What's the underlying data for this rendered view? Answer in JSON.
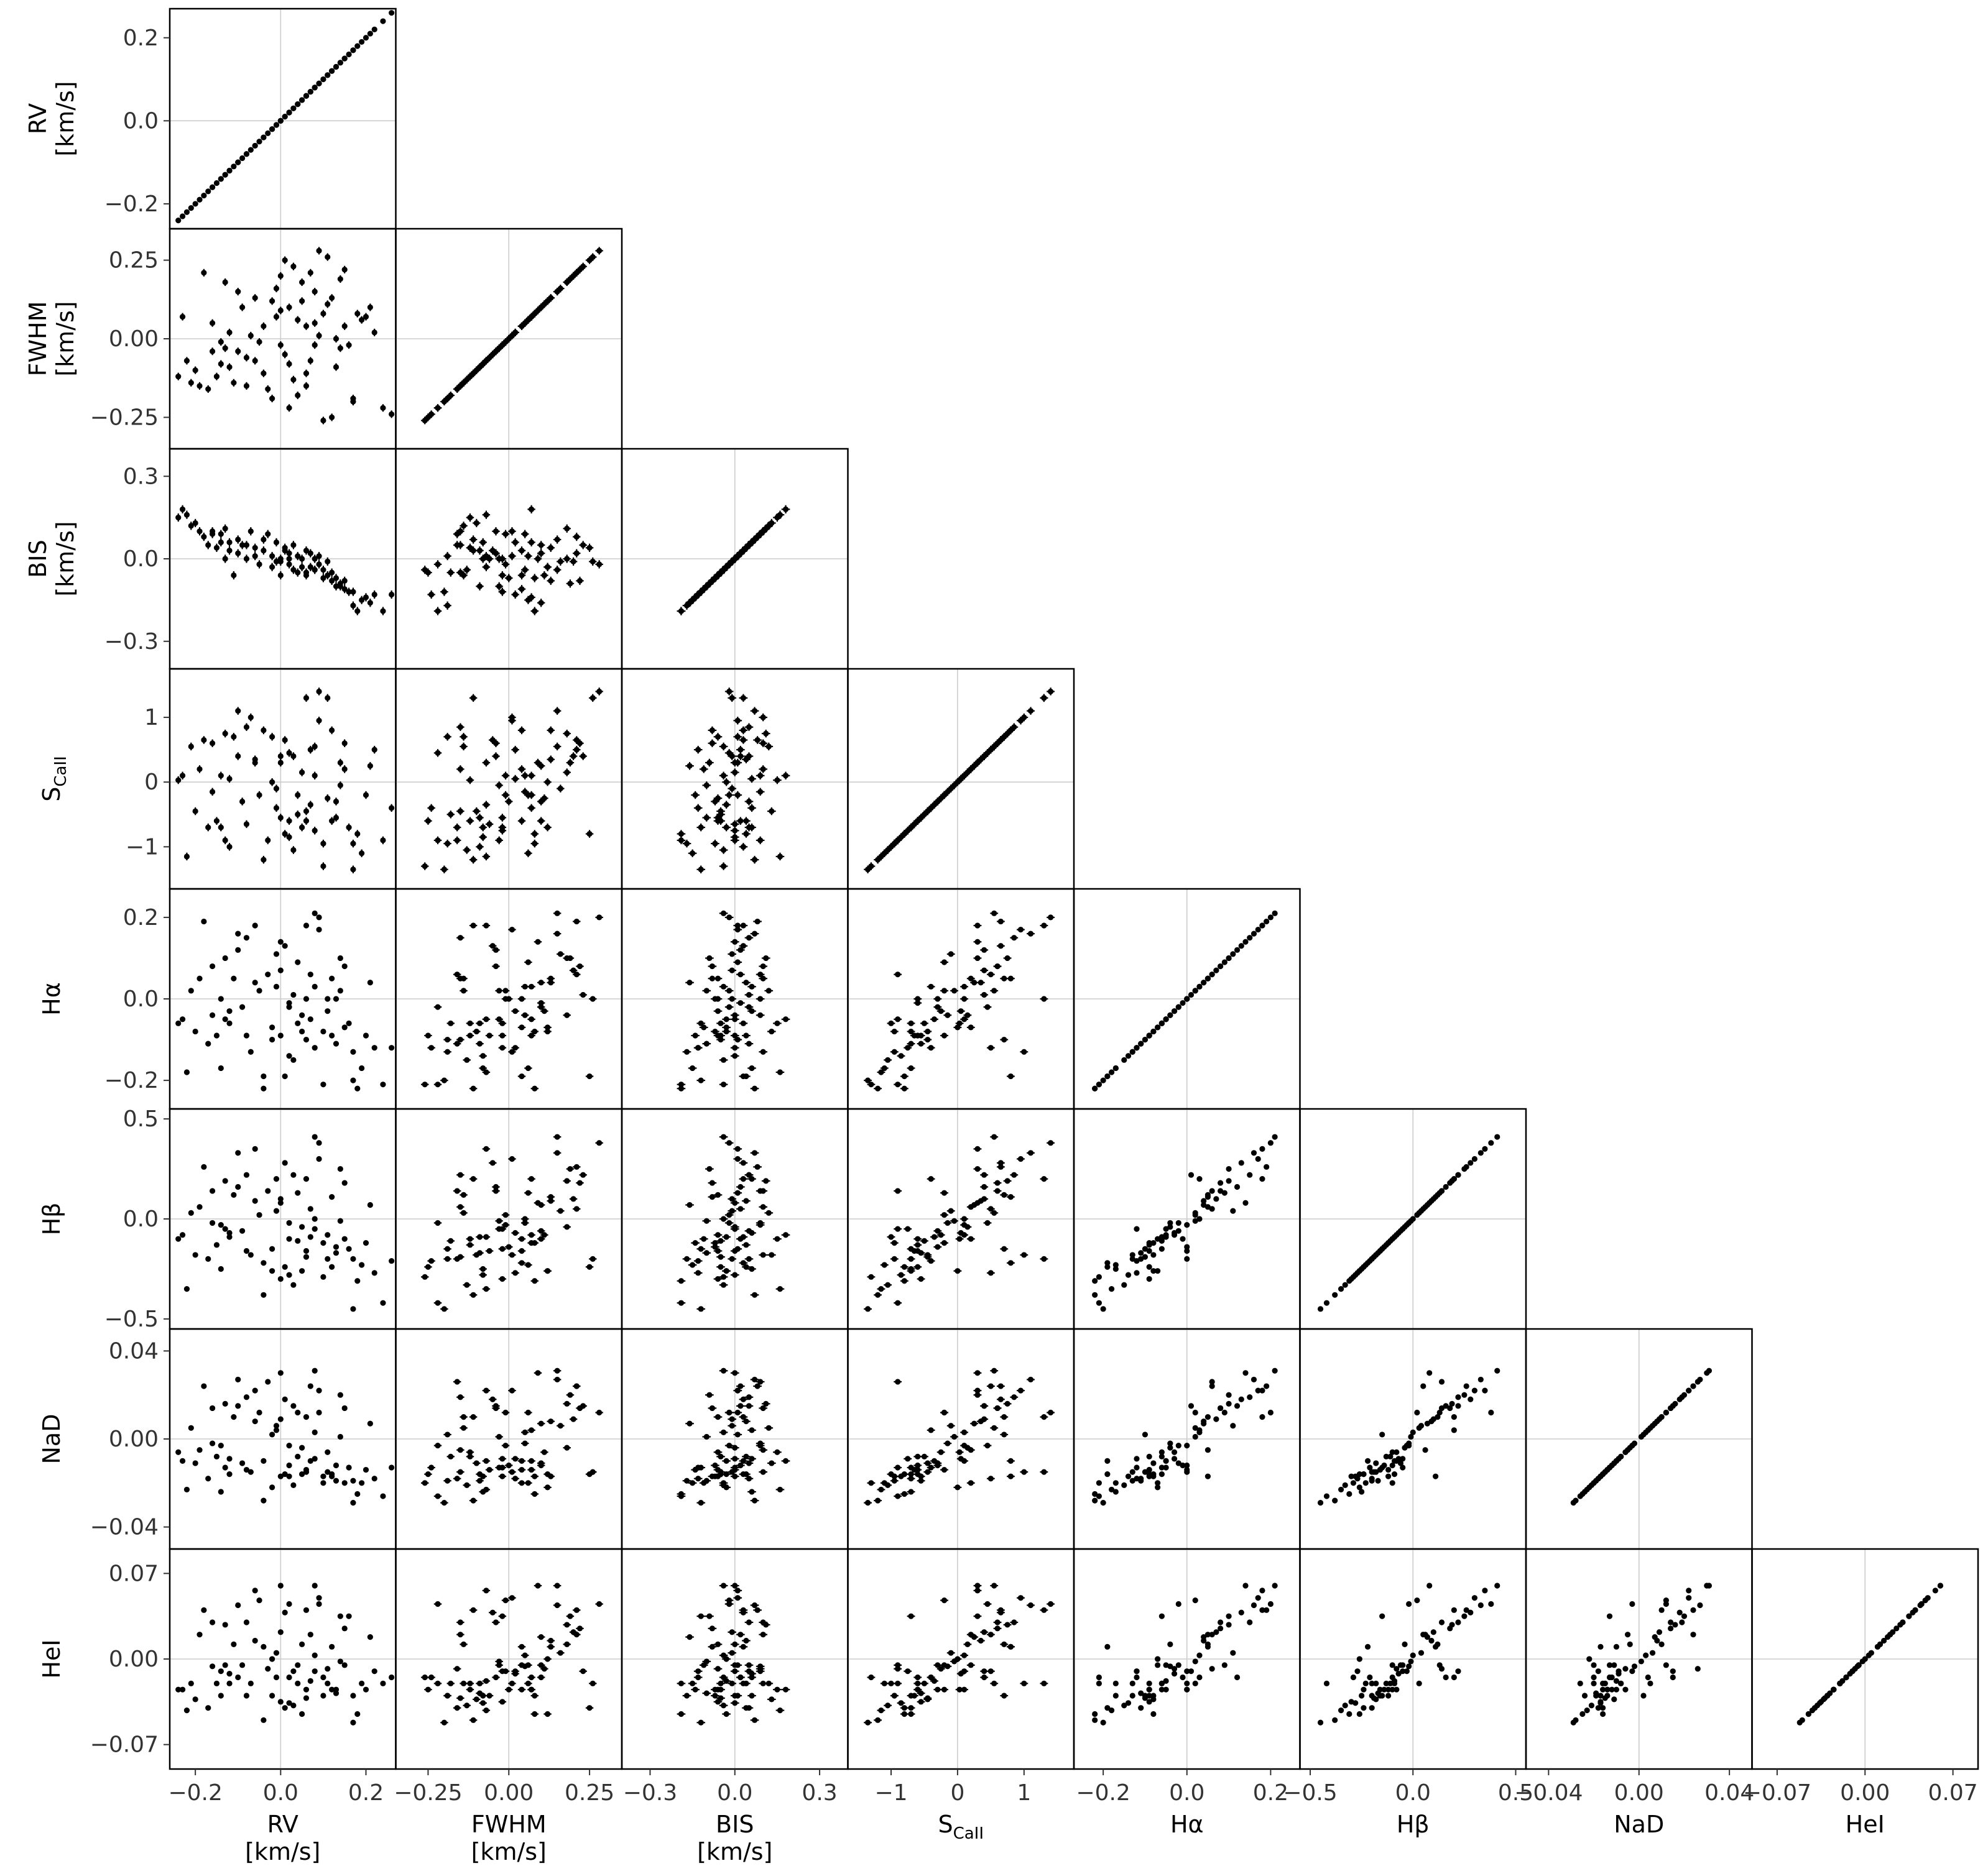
{
  "variables": [
    {
      "key": "RV",
      "label": "RV",
      "sub": "",
      "unit": "[km/s]",
      "ticks": [
        -0.2,
        0.0,
        0.2
      ],
      "tick_labels": [
        "−0.2",
        "0.0",
        "0.2"
      ],
      "range": [
        -0.26,
        0.27
      ]
    },
    {
      "key": "FWHM",
      "label": "FWHM",
      "sub": "",
      "unit": "[km/s]",
      "ticks": [
        -0.25,
        0.0,
        0.25
      ],
      "tick_labels": [
        "−0.25",
        "0.00",
        "0.25"
      ],
      "range": [
        -0.35,
        0.35
      ]
    },
    {
      "key": "BIS",
      "label": "BIS",
      "sub": "",
      "unit": "[km/s]",
      "ticks": [
        -0.3,
        0.0,
        0.3
      ],
      "tick_labels": [
        "−0.3",
        "0.0",
        "0.3"
      ],
      "range": [
        -0.4,
        0.4
      ]
    },
    {
      "key": "SCaII",
      "label": "S",
      "sub": "CaII",
      "unit": "",
      "ticks": [
        -1,
        0,
        1
      ],
      "tick_labels": [
        "−1",
        "0",
        "1"
      ],
      "range": [
        -1.65,
        1.75
      ]
    },
    {
      "key": "Ha",
      "label": "Hα",
      "sub": "",
      "unit": "",
      "ticks": [
        -0.2,
        0.0,
        0.2
      ],
      "tick_labels": [
        "−0.2",
        "0.0",
        "0.2"
      ],
      "range": [
        -0.27,
        0.27
      ]
    },
    {
      "key": "Hb",
      "label": "Hβ",
      "sub": "",
      "unit": "",
      "ticks": [
        -0.5,
        0.0,
        0.5
      ],
      "tick_labels": [
        "−0.5",
        "0.0",
        "0.5"
      ],
      "range": [
        -0.55,
        0.55
      ]
    },
    {
      "key": "NaD",
      "label": "NaD",
      "sub": "",
      "unit": "",
      "ticks": [
        -0.04,
        0.0,
        0.04
      ],
      "tick_labels": [
        "−0.04",
        "0.00",
        "0.04"
      ],
      "range": [
        -0.05,
        0.05
      ]
    },
    {
      "key": "HeI",
      "label": "HeI",
      "sub": "",
      "unit": "",
      "ticks": [
        -0.07,
        0.0,
        0.07
      ],
      "tick_labels": [
        "−0.07",
        "0.00",
        "0.07"
      ],
      "range": [
        -0.09,
        0.09
      ]
    }
  ],
  "chart_data": {
    "type": "scatter",
    "layout": "corner-pairplot",
    "grid": true,
    "n_points": 80,
    "error_bars": {
      "RV": 0.006,
      "FWHM": 0.012,
      "BIS": 0.015,
      "SCaII": 0.06,
      "Ha": 0.004,
      "Hb": 0.006,
      "NaD": 0.0006,
      "HeI": 0.001
    },
    "points": [
      [
        -0.24,
        -0.12,
        0.15,
        0.03,
        -0.06,
        -0.1,
        -0.006,
        -0.025
      ],
      [
        -0.23,
        0.07,
        0.18,
        0.1,
        -0.05,
        -0.08,
        -0.01,
        -0.025
      ],
      [
        -0.21,
        -0.14,
        0.12,
        0.55,
        0.02,
        0.03,
        0.005,
        -0.02
      ],
      [
        -0.19,
        -0.15,
        0.1,
        0.2,
        0.05,
        0.06,
        -0.005,
        0.02
      ],
      [
        -0.18,
        0.21,
        0.08,
        0.65,
        0.19,
        0.26,
        0.024,
        0.04
      ],
      [
        -0.17,
        -0.16,
        0.05,
        -0.7,
        -0.11,
        -0.2,
        -0.018,
        -0.04
      ],
      [
        -0.16,
        -0.04,
        0.1,
        0.6,
        0.08,
        0.14,
        0.014,
        0.03
      ],
      [
        -0.15,
        -0.12,
        0.04,
        -0.6,
        -0.09,
        -0.13,
        -0.008,
        -0.02
      ],
      [
        -0.14,
        -0.01,
        0.09,
        0.1,
        0.0,
        -0.03,
        -0.003,
        -0.01
      ],
      [
        -0.14,
        -0.08,
        0.06,
        -0.7,
        -0.17,
        -0.25,
        -0.024,
        -0.03
      ],
      [
        -0.13,
        -0.03,
        0.0,
        -0.9,
        -0.05,
        -0.05,
        -0.013,
        -0.005
      ],
      [
        -0.12,
        -0.09,
        0.03,
        -1.0,
        -0.06,
        -0.09,
        -0.016,
        -0.02
      ],
      [
        -0.11,
        -0.14,
        -0.06,
        0.7,
        0.05,
        0.12,
        0.01,
        0.012
      ],
      [
        -0.1,
        -0.04,
        0.02,
        0.4,
        0.12,
        0.16,
        0.015,
        -0.015
      ],
      [
        -0.09,
        0.1,
        0.05,
        -0.3,
        -0.02,
        -0.06,
        -0.011,
        -0.005
      ],
      [
        -0.08,
        -0.06,
        0.0,
        -0.65,
        -0.09,
        -0.16,
        -0.014,
        -0.03
      ],
      [
        -0.07,
        0.01,
        0.1,
        1.0,
        -0.13,
        -0.18,
        -0.015,
        -0.02
      ],
      [
        -0.06,
        -0.07,
        0.01,
        0.3,
        0.18,
        0.35,
        0.022,
        0.056
      ],
      [
        -0.05,
        -0.01,
        -0.02,
        -0.2,
        0.02,
        0.02,
        0.012,
        0.048
      ],
      [
        -0.04,
        0.04,
        0.03,
        0.8,
        -0.19,
        -0.22,
        -0.01,
        0.01
      ],
      [
        -0.03,
        -0.16,
        0.09,
        -0.9,
        0.06,
        0.14,
        0.026,
        -0.008
      ],
      [
        -0.02,
        0.12,
        -0.03,
        0.0,
        -0.07,
        -0.26,
        -0.022,
        0.0
      ],
      [
        -0.02,
        -0.19,
        0.01,
        0.7,
        -0.1,
        -0.15,
        0.002,
        -0.03
      ],
      [
        -0.01,
        0.07,
        0.06,
        -0.4,
        0.03,
        0.2,
        0.004,
        -0.015
      ],
      [
        0.0,
        -0.02,
        -0.06,
        -0.55,
        -0.09,
        -0.3,
        -0.017,
        -0.035
      ],
      [
        0.0,
        0.09,
        0.0,
        0.3,
        0.14,
        0.08,
        0.03,
        0.06
      ],
      [
        0.01,
        0.25,
        0.04,
        -0.8,
        -0.19,
        -0.24,
        -0.016,
        -0.04
      ],
      [
        0.02,
        -0.22,
        -0.02,
        0.45,
        -0.02,
        -0.02,
        -0.003,
        0.045
      ],
      [
        0.02,
        0.1,
        0.02,
        -0.6,
        -0.01,
        -0.1,
        -0.012,
        -0.015
      ],
      [
        0.03,
        0.23,
        0.05,
        0.4,
        0.01,
        0.22,
        0.015,
        -0.01
      ],
      [
        0.04,
        -0.18,
        -0.05,
        -0.5,
        -0.06,
        -0.11,
        -0.008,
        -0.02
      ],
      [
        0.04,
        0.06,
        0.01,
        -0.2,
        0.09,
        0.13,
        0.012,
        -0.005
      ],
      [
        0.05,
        0.12,
        -0.03,
        -0.7,
        -0.08,
        -0.26,
        -0.016,
        -0.045
      ],
      [
        0.06,
        -0.11,
        0.03,
        1.3,
        0.18,
        0.2,
        0.01,
        0.04
      ],
      [
        0.06,
        0.04,
        -0.06,
        -0.6,
        0.0,
        -0.16,
        -0.014,
        -0.025
      ],
      [
        0.07,
        0.21,
        0.02,
        0.5,
        0.06,
        0.05,
        0.024,
        0.02
      ],
      [
        0.08,
        -0.02,
        0.0,
        -0.75,
        -0.12,
        -0.05,
        -0.009,
        -0.01
      ],
      [
        0.08,
        0.15,
        -0.04,
        0.55,
        0.21,
        0.41,
        0.031,
        0.06
      ],
      [
        0.09,
        0.28,
        -0.02,
        1.4,
        0.2,
        0.38,
        0.012,
        0.045
      ],
      [
        0.1,
        -0.26,
        -0.04,
        -1.3,
        -0.21,
        -0.29,
        -0.02,
        -0.015
      ],
      [
        0.1,
        0.08,
        -0.07,
        -0.95,
        -0.08,
        -0.12,
        -0.017,
        -0.03
      ],
      [
        0.11,
        0.26,
        -0.01,
        1.3,
        0.0,
        -0.2,
        -0.015,
        -0.02
      ],
      [
        0.12,
        -0.25,
        -0.05,
        -0.6,
        -0.09,
        -0.24,
        -0.016,
        -0.025
      ],
      [
        0.12,
        0.13,
        -0.08,
        0.8,
        0.05,
        0.11,
        -0.017,
        0.01
      ],
      [
        0.13,
        0.0,
        -0.07,
        -0.3,
        0.0,
        -0.14,
        -0.012,
        -0.025
      ],
      [
        0.14,
        0.19,
        -0.09,
        0.3,
        0.1,
        0.25,
        0.02,
        0.035
      ],
      [
        0.15,
        0.04,
        -0.11,
        0.2,
        -0.07,
        -0.1,
        -0.02,
        -0.005
      ],
      [
        0.16,
        -0.02,
        -0.12,
        -0.7,
        -0.06,
        -0.15,
        -0.013,
        0.035
      ],
      [
        0.17,
        -0.19,
        -0.17,
        -0.95,
        -0.13,
        -0.2,
        -0.019,
        -0.03
      ],
      [
        0.18,
        0.08,
        -0.19,
        -0.8,
        -0.22,
        -0.31,
        -0.025,
        -0.045
      ],
      [
        0.19,
        0.06,
        -0.15,
        -1.1,
        -0.17,
        -0.23,
        -0.02,
        -0.02
      ],
      [
        0.2,
        0.07,
        -0.14,
        -0.2,
        -0.09,
        -0.12,
        -0.014,
        -0.025
      ],
      [
        0.22,
        0.02,
        -0.13,
        0.5,
        -0.12,
        -0.27,
        -0.018,
        -0.01
      ],
      [
        0.24,
        -0.22,
        -0.19,
        -0.9,
        -0.21,
        -0.42,
        -0.026,
        -0.02
      ],
      [
        0.26,
        -0.24,
        -0.13,
        -0.4,
        -0.12,
        -0.21,
        -0.013,
        -0.015
      ],
      [
        -0.2,
        -0.1,
        0.13,
        -0.45,
        -0.08,
        -0.18,
        -0.011,
        -0.033
      ],
      [
        -0.12,
        0.02,
        0.06,
        0.05,
        -0.03,
        -0.07,
        -0.009,
        -0.012
      ],
      [
        -0.06,
        0.13,
        0.04,
        0.35,
        0.04,
        0.09,
        0.008,
        0.015
      ],
      [
        -0.04,
        -0.11,
        0.07,
        -1.2,
        -0.22,
        -0.38,
        -0.028,
        -0.05
      ],
      [
        -0.01,
        0.16,
        -0.01,
        -0.1,
        0.11,
        0.04,
        0.006,
        0.005
      ],
      [
        0.01,
        -0.05,
        0.03,
        0.65,
        0.13,
        0.28,
        0.018,
        0.038
      ],
      [
        0.03,
        -0.13,
        -0.04,
        -1.05,
        -0.15,
        -0.33,
        -0.021,
        -0.038
      ],
      [
        0.05,
        0.18,
        0.0,
        0.15,
        -0.04,
        -0.04,
        -0.004,
        0.012
      ],
      [
        0.07,
        -0.07,
        -0.03,
        -0.35,
        -0.05,
        -0.09,
        -0.01,
        -0.018
      ],
      [
        0.09,
        0.01,
        0.01,
        0.95,
        0.17,
        0.3,
        0.022,
        0.05
      ],
      [
        0.11,
        0.11,
        -0.06,
        -0.25,
        -0.03,
        -0.08,
        -0.006,
        -0.008
      ],
      [
        0.13,
        -0.09,
        -0.1,
        -0.55,
        -0.11,
        -0.17,
        -0.019,
        -0.028
      ],
      [
        0.15,
        0.22,
        -0.08,
        0.6,
        0.08,
        0.18,
        0.014,
        0.025
      ],
      [
        -0.16,
        0.05,
        0.09,
        -0.15,
        -0.04,
        -0.02,
        -0.002,
        -0.006
      ],
      [
        -0.08,
        -0.15,
        0.05,
        0.85,
        0.15,
        0.22,
        0.019,
        0.03
      ],
      [
        0.0,
        0.2,
        -0.01,
        0.4,
        0.07,
        0.1,
        0.009,
        0.022
      ],
      [
        0.06,
        -0.15,
        -0.05,
        -0.45,
        -0.1,
        -0.19,
        -0.015,
        -0.032
      ],
      [
        0.14,
        -0.03,
        -0.1,
        -0.05,
        0.02,
        -0.01,
        0.001,
        -0.002
      ],
      [
        0.21,
        0.1,
        -0.16,
        0.25,
        0.04,
        0.07,
        0.007,
        0.018
      ],
      [
        -0.22,
        -0.07,
        0.16,
        -1.15,
        -0.18,
        -0.35,
        -0.023,
        -0.042
      ],
      [
        -0.1,
        0.15,
        0.07,
        1.1,
        0.16,
        0.33,
        0.027,
        0.044
      ],
      [
        0.02,
        -0.08,
        0.0,
        -0.85,
        -0.14,
        -0.28,
        -0.017,
        -0.036
      ],
      [
        0.08,
        0.05,
        -0.04,
        0.1,
        0.03,
        0.0,
        0.003,
        0.003
      ],
      [
        0.17,
        -0.2,
        -0.12,
        -1.35,
        -0.2,
        -0.45,
        -0.029,
        -0.052
      ],
      [
        -0.13,
        0.18,
        0.11,
        0.75,
        0.1,
        0.19,
        0.016,
        0.028
      ]
    ]
  }
}
